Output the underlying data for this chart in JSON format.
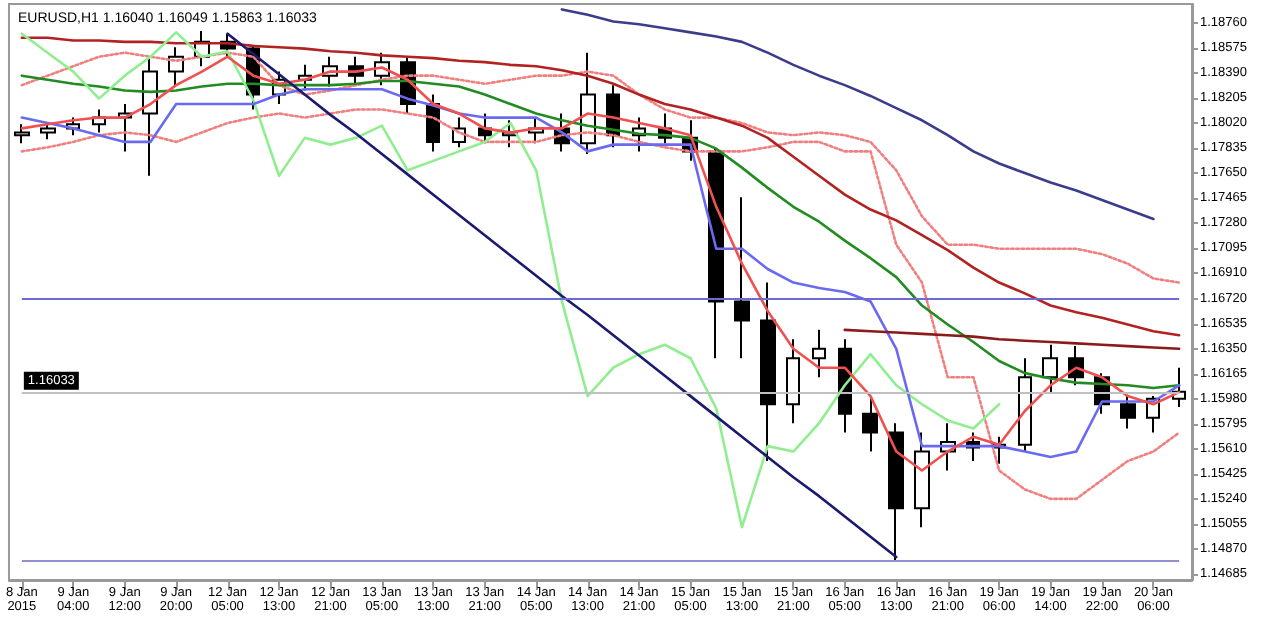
{
  "chart_data": {
    "type": "candlestick",
    "title": "EURUSD,H1 1.16040 1.16049 1.15863 1.16033",
    "categories": [
      "8 Jan 2015",
      null,
      "9 Jan 04:00",
      null,
      "9 Jan 12:00",
      null,
      "9 Jan 20:00",
      null,
      "12 Jan 05:00",
      null,
      "12 Jan 13:00",
      null,
      "12 Jan 21:00",
      null,
      "13 Jan 05:00",
      null,
      "13 Jan 13:00",
      null,
      "13 Jan 21:00",
      null,
      "14 Jan 05:00",
      null,
      "14 Jan 13:00",
      null,
      "14 Jan 21:00",
      null,
      "15 Jan 05:00",
      null,
      "15 Jan 13:00",
      null,
      "15 Jan 21:00",
      null,
      "16 Jan 05:00",
      null,
      "16 Jan 13:00",
      null,
      "16 Jan 21:00",
      null,
      "19 Jan 06:00",
      null,
      "19 Jan 14:00",
      null,
      "19 Jan 22:00",
      null,
      "20 Jan 06:00",
      null
    ],
    "ylim": [
      1.1464,
      1.189
    ],
    "yticks": [
      {
        "value": 1.1876,
        "label": "1.18760"
      },
      {
        "value": 1.18575,
        "label": "1.18575"
      },
      {
        "value": 1.1839,
        "label": "1.18390"
      },
      {
        "value": 1.18205,
        "label": "1.18205"
      },
      {
        "value": 1.1802,
        "label": "1.18020"
      },
      {
        "value": 1.17835,
        "label": "1.17835"
      },
      {
        "value": 1.1765,
        "label": "1.17650"
      },
      {
        "value": 1.17465,
        "label": "1.17465"
      },
      {
        "value": 1.1728,
        "label": "1.17280"
      },
      {
        "value": 1.17095,
        "label": "1.17095"
      },
      {
        "value": 1.1691,
        "label": "1.16910"
      },
      {
        "value": 1.1672,
        "label": "1.16720"
      },
      {
        "value": 1.16535,
        "label": "1.16535"
      },
      {
        "value": 1.1635,
        "label": "1.16350"
      },
      {
        "value": 1.16165,
        "label": "1.16165"
      },
      {
        "value": 1.1598,
        "label": "1.15980"
      },
      {
        "value": 1.15795,
        "label": "1.15795"
      },
      {
        "value": 1.1561,
        "label": "1.15610"
      },
      {
        "value": 1.15425,
        "label": "1.15425"
      },
      {
        "value": 1.1524,
        "label": "1.15240"
      },
      {
        "value": 1.15055,
        "label": "1.15055"
      },
      {
        "value": 1.1487,
        "label": "1.14870"
      },
      {
        "value": 1.14685,
        "label": "1.14685"
      }
    ],
    "ref_lines": [
      {
        "axis": "y",
        "value": 1.1672,
        "color": "#6b6bd6"
      },
      {
        "axis": "y",
        "value": 1.1478,
        "color": "#9090d0"
      },
      {
        "axis": "y",
        "value": 1.16033,
        "label": "1.16033",
        "color": "#c0c0c0"
      }
    ],
    "series": [
      {
        "type": "line",
        "color": "#f08080",
        "line_style": "dotted",
        "values": [
          1.183,
          1.1837,
          1.1844,
          1.1851,
          1.1854,
          1.1851,
          1.1848,
          1.1851,
          1.1854,
          1.1851,
          1.183,
          1.1823,
          1.1826,
          1.183,
          1.1834,
          1.1837,
          1.1837,
          1.1834,
          1.1831,
          1.1834,
          1.1837,
          1.1837,
          1.184,
          1.1837,
          1.1823,
          1.1812,
          1.1806,
          1.1806,
          1.1802,
          1.1795,
          1.1793,
          1.1795,
          1.1793,
          1.1788,
          1.1767,
          1.1733,
          1.1712,
          1.1712,
          1.1709,
          1.1709,
          1.1709,
          1.1709,
          1.1705,
          1.1698,
          1.1687,
          1.1684
        ]
      },
      {
        "type": "line",
        "color": "#f08080",
        "line_style": "dotted",
        "values": [
          1.1781,
          1.1784,
          1.1788,
          1.1793,
          1.1795,
          1.1793,
          1.1788,
          1.1795,
          1.1802,
          1.1806,
          1.1809,
          1.1806,
          1.1809,
          1.1812,
          1.1812,
          1.1809,
          1.1806,
          1.1795,
          1.1788,
          1.1788,
          1.1788,
          1.1793,
          1.1795,
          1.1793,
          1.1788,
          1.1784,
          1.1781,
          1.1781,
          1.1781,
          1.1784,
          1.1788,
          1.1788,
          1.1781,
          1.1781,
          1.1712,
          1.1684,
          1.1614,
          1.1614,
          1.1545,
          1.1531,
          1.1524,
          1.1524,
          1.1538,
          1.1552,
          1.1559,
          1.1573
        ]
      },
      {
        "type": "line",
        "color": "#3c3c8c",
        "values": [
          null,
          null,
          null,
          null,
          null,
          null,
          null,
          null,
          null,
          null,
          null,
          null,
          null,
          null,
          null,
          null,
          null,
          null,
          null,
          null,
          null,
          1.1886,
          1.1882,
          1.1877,
          1.1875,
          1.1872,
          1.1869,
          1.1866,
          1.1862,
          1.1854,
          1.1845,
          1.1837,
          1.183,
          1.1822,
          1.1813,
          1.1804,
          1.1793,
          1.1781,
          1.1772,
          1.1765,
          1.1758,
          1.1752,
          1.1745,
          1.1738,
          1.1731,
          null
        ]
      },
      {
        "type": "line",
        "color": "#b22222",
        "values": [
          1.1865,
          1.1865,
          1.1863,
          1.1863,
          1.1862,
          1.1862,
          1.1861,
          1.1861,
          1.1861,
          1.1859,
          1.1858,
          1.1857,
          1.1855,
          1.1854,
          1.1852,
          1.1851,
          1.185,
          1.1848,
          1.1847,
          1.1845,
          1.1844,
          1.1841,
          1.1837,
          1.1831,
          1.1823,
          1.1816,
          1.1812,
          1.1806,
          1.18,
          1.1791,
          1.1777,
          1.1763,
          1.1749,
          1.1738,
          1.173,
          1.1719,
          1.1708,
          1.1695,
          1.1684,
          1.1676,
          1.1667,
          1.1662,
          1.1658,
          1.1653,
          1.1648,
          1.1645
        ]
      },
      {
        "type": "line",
        "color": "#228b22",
        "values": [
          1.1837,
          1.1834,
          1.1831,
          1.1829,
          1.1826,
          1.1825,
          1.1826,
          1.1829,
          1.1831,
          1.1831,
          1.183,
          1.183,
          1.183,
          1.1831,
          1.1833,
          1.1833,
          1.1831,
          1.1829,
          1.1823,
          1.1816,
          1.1809,
          1.1804,
          1.18,
          1.1797,
          1.1794,
          1.1793,
          1.1791,
          1.1783,
          1.1769,
          1.1754,
          1.174,
          1.1729,
          1.1715,
          1.1702,
          1.1688,
          1.1667,
          1.1653,
          1.164,
          1.1626,
          1.1617,
          1.1613,
          1.161,
          1.1609,
          1.1608,
          1.1606,
          1.1608
        ]
      },
      {
        "type": "line",
        "color": "#90ee90",
        "values": [
          1.1868,
          1.1854,
          1.184,
          1.182,
          1.1837,
          1.1851,
          1.1869,
          1.1851,
          1.1855,
          1.1819,
          1.1763,
          1.1791,
          1.1786,
          1.1791,
          1.18,
          1.1767,
          1.1774,
          1.1781,
          1.1788,
          1.1802,
          1.1767,
          1.167,
          1.16,
          1.1621,
          1.1631,
          1.1638,
          1.1628,
          1.1591,
          1.1503,
          1.1563,
          1.1559,
          1.158,
          1.1608,
          1.1631,
          1.1608,
          1.1594,
          1.1582,
          1.1576,
          1.1594,
          null,
          null,
          null,
          null,
          null,
          null,
          null
        ]
      },
      {
        "type": "line",
        "color": "#6a6af0",
        "values": [
          1.1806,
          1.1802,
          1.1798,
          1.1793,
          1.1788,
          1.1788,
          1.1816,
          1.1816,
          1.1816,
          1.1816,
          1.1823,
          1.1827,
          1.1827,
          1.1827,
          1.1827,
          1.182,
          1.1815,
          1.1809,
          1.1806,
          1.1806,
          1.1806,
          1.1795,
          1.1781,
          1.1786,
          1.1786,
          1.1786,
          1.1786,
          1.1709,
          1.1709,
          1.1694,
          1.1684,
          1.168,
          1.1677,
          1.167,
          1.1635,
          1.1563,
          1.1563,
          1.1563,
          1.1563,
          1.1559,
          1.1555,
          1.1559,
          1.1596,
          1.1596,
          1.1596,
          1.1608
        ]
      },
      {
        "type": "line",
        "color": "#f05050",
        "values": [
          1.1798,
          1.1801,
          1.1804,
          1.1806,
          1.1806,
          1.1816,
          1.183,
          1.184,
          1.1851,
          1.1837,
          1.1831,
          1.1834,
          1.184,
          1.184,
          1.1843,
          1.1834,
          1.1816,
          1.1809,
          1.1798,
          1.1795,
          1.1798,
          1.1798,
          1.1809,
          1.1806,
          1.1802,
          1.1798,
          1.1793,
          1.174,
          1.1698,
          1.1663,
          1.1635,
          1.1621,
          1.1621,
          1.16,
          1.1559,
          1.1545,
          1.1559,
          1.157,
          1.1564,
          1.1589,
          1.1608,
          1.1621,
          1.1614,
          1.16,
          1.1594,
          1.1603
        ]
      },
      {
        "type": "line",
        "color": "#1a1a6e",
        "values": [
          null,
          null,
          null,
          null,
          null,
          null,
          null,
          null,
          1.1868,
          1.1853,
          1.1838,
          1.1823,
          1.1808,
          1.1794,
          1.1779,
          1.1764,
          1.1749,
          1.1734,
          1.1719,
          1.1704,
          1.1689,
          1.1674,
          1.166,
          1.1645,
          1.163,
          1.1615,
          1.16,
          1.1585,
          1.157,
          1.1555,
          1.154,
          1.1526,
          1.1511,
          1.1496,
          1.1481,
          null,
          null,
          null,
          null,
          null,
          null,
          null,
          null,
          null,
          null,
          null
        ]
      },
      {
        "type": "line",
        "color": "#8b1a1a",
        "values": [
          null,
          null,
          null,
          null,
          null,
          null,
          null,
          null,
          null,
          null,
          null,
          null,
          null,
          null,
          null,
          null,
          null,
          null,
          null,
          null,
          null,
          null,
          null,
          null,
          null,
          null,
          null,
          null,
          null,
          null,
          null,
          null,
          1.1649,
          1.1648,
          1.1647,
          1.1646,
          1.1645,
          1.1644,
          1.1642,
          1.1641,
          1.164,
          1.1639,
          1.1638,
          1.1637,
          1.1636,
          1.1635
        ]
      },
      {
        "color": "#000000",
        "ohlc": [
          [
            1.1793,
            1.1801,
            1.1787,
            1.1795
          ],
          [
            1.1795,
            1.1801,
            1.179,
            1.1798
          ],
          [
            1.1798,
            1.1806,
            1.1793,
            1.1801
          ],
          [
            1.1801,
            1.1812,
            1.1795,
            1.1806
          ],
          [
            1.1806,
            1.1816,
            1.1781,
            1.1809
          ],
          [
            1.1809,
            1.1851,
            1.1763,
            1.184
          ],
          [
            1.184,
            1.1858,
            1.183,
            1.1851
          ],
          [
            1.1851,
            1.187,
            1.1844,
            1.1862
          ],
          [
            1.1862,
            1.1868,
            1.1851,
            1.1857
          ],
          [
            1.1857,
            1.1859,
            1.1812,
            1.1823
          ],
          [
            1.1823,
            1.184,
            1.1816,
            1.1834
          ],
          [
            1.1834,
            1.1845,
            1.1826,
            1.1837
          ],
          [
            1.1837,
            1.1851,
            1.1829,
            1.1844
          ],
          [
            1.1844,
            1.1851,
            1.1831,
            1.1837
          ],
          [
            1.1837,
            1.1854,
            1.183,
            1.1847
          ],
          [
            1.1847,
            1.1851,
            1.1809,
            1.1816
          ],
          [
            1.1816,
            1.1823,
            1.1781,
            1.1788
          ],
          [
            1.1788,
            1.1806,
            1.1784,
            1.1798
          ],
          [
            1.1798,
            1.1809,
            1.1787,
            1.1793
          ],
          [
            1.1793,
            1.1804,
            1.1784,
            1.1795
          ],
          [
            1.1795,
            1.1806,
            1.1787,
            1.1798
          ],
          [
            1.1798,
            1.1809,
            1.1781,
            1.1787
          ],
          [
            1.1787,
            1.1854,
            1.1779,
            1.1823
          ],
          [
            1.1823,
            1.183,
            1.1784,
            1.1793
          ],
          [
            1.1793,
            1.1806,
            1.1781,
            1.1798
          ],
          [
            1.1798,
            1.1809,
            1.1787,
            1.1791
          ],
          [
            1.1791,
            1.1804,
            1.1774,
            1.1781
          ],
          [
            1.1781,
            1.1784,
            1.1628,
            1.167
          ],
          [
            1.167,
            1.1747,
            1.1628,
            1.1656
          ],
          [
            1.1656,
            1.1684,
            1.1552,
            1.1594
          ],
          [
            1.1594,
            1.1642,
            1.158,
            1.1628
          ],
          [
            1.1628,
            1.1649,
            1.1614,
            1.1635
          ],
          [
            1.1635,
            1.1642,
            1.1573,
            1.1587
          ],
          [
            1.1587,
            1.16,
            1.1559,
            1.1573
          ],
          [
            1.1573,
            1.158,
            1.1478,
            1.1517
          ],
          [
            1.1517,
            1.1573,
            1.1503,
            1.1559
          ],
          [
            1.1559,
            1.158,
            1.1545,
            1.1566
          ],
          [
            1.1566,
            1.1573,
            1.1552,
            1.1562
          ],
          [
            1.1562,
            1.157,
            1.155,
            1.1564
          ],
          [
            1.1564,
            1.1628,
            1.1559,
            1.1614
          ],
          [
            1.1614,
            1.1638,
            1.1603,
            1.1628
          ],
          [
            1.1628,
            1.1637,
            1.1608,
            1.1614
          ],
          [
            1.1614,
            1.1617,
            1.1587,
            1.1594
          ],
          [
            1.1594,
            1.16,
            1.1576,
            1.1584
          ],
          [
            1.1584,
            1.16,
            1.1573,
            1.1598
          ],
          [
            1.1598,
            1.1621,
            1.1592,
            1.16033
          ]
        ]
      }
    ]
  }
}
